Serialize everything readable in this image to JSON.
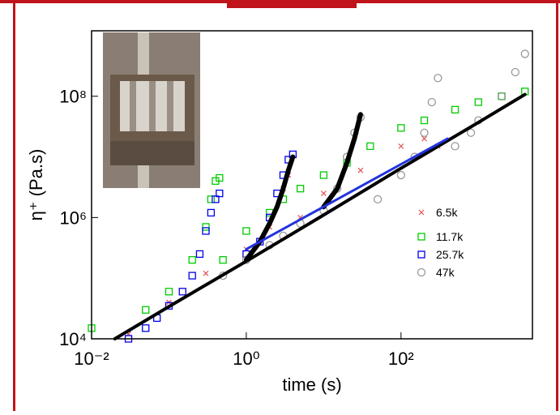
{
  "chart_data": {
    "type": "scatter",
    "xlabel": "time (s)",
    "ylabel": "η⁺ (Pa.s)",
    "log_x": true,
    "log_y": true,
    "xlim": [
      0.01,
      5000
    ],
    "ylim": [
      10000,
      1200000000
    ],
    "xticks": [
      {
        "value": 0.01,
        "label": "10⁻²"
      },
      {
        "value": 1,
        "label": "10⁰"
      },
      {
        "value": 100,
        "label": "10²"
      }
    ],
    "yticks": [
      {
        "value": 10000,
        "label": "10⁴"
      },
      {
        "value": 1000000,
        "label": "10⁶"
      },
      {
        "value": 100000000,
        "label": "10⁸"
      }
    ],
    "legend": "right",
    "series": [
      {
        "name": "6.5k",
        "color": "#e05050",
        "marker": "x",
        "x": [
          0.03,
          0.1,
          0.3,
          1,
          2,
          3,
          3.5,
          5,
          10,
          30,
          100,
          200,
          300
        ],
        "values": [
          12000,
          40000,
          120000,
          300000,
          700000,
          3000000,
          5000000,
          1000000,
          2500000,
          6000000,
          15000000,
          20000000,
          15000000
        ]
      },
      {
        "name": "11.7k",
        "color": "#00cc00",
        "marker": "square",
        "x": [
          0.01,
          0.05,
          0.1,
          0.2,
          0.3,
          0.35,
          0.4,
          0.45,
          0.5,
          1,
          2,
          3,
          5,
          10,
          20,
          40,
          100,
          200,
          500,
          1000,
          2000,
          4000
        ],
        "values": [
          15000,
          30000,
          60000,
          200000,
          700000,
          2000000,
          4000000,
          4500000,
          200000,
          600000,
          1200000,
          2000000,
          3000000,
          5000000,
          8000000,
          15000000,
          30000000,
          40000000,
          60000000,
          80000000,
          100000000,
          120000000
        ]
      },
      {
        "name": "25.7k",
        "color": "#0000ee",
        "marker": "square",
        "x": [
          0.03,
          0.05,
          0.07,
          0.1,
          0.15,
          0.2,
          0.25,
          0.3,
          0.35,
          0.4,
          0.45,
          1,
          1.5,
          2,
          2.5,
          3,
          3.5,
          4
        ],
        "values": [
          10000,
          15000,
          22000,
          35000,
          60000,
          110000,
          250000,
          600000,
          1200000,
          2000000,
          2500000,
          250000,
          400000,
          1000000,
          2500000,
          5000000,
          9000000,
          11000000
        ]
      },
      {
        "name": "47k",
        "color": "#999999",
        "marker": "circle",
        "x": [
          0.5,
          1,
          2,
          3,
          5,
          10,
          15,
          20,
          25,
          30,
          50,
          100,
          150,
          200,
          250,
          300,
          500,
          800,
          1000,
          2000,
          3000,
          4000
        ],
        "values": [
          110000,
          200000,
          350000,
          500000,
          800000,
          1300000,
          3000000,
          10000000,
          25000000,
          45000000,
          2000000,
          5000000,
          10000000,
          25000000,
          80000000,
          200000000,
          15000000,
          25000000,
          40000000,
          100000000,
          250000000,
          500000000
        ]
      }
    ],
    "lines": [
      {
        "color": "#000000",
        "width": 4,
        "x": [
          0.02,
          0.1,
          1,
          10,
          100,
          1000,
          4000
        ],
        "values": [
          10000,
          34000,
          190000,
          1100000,
          6500000,
          37000000,
          107000000
        ]
      },
      {
        "color": "#000000",
        "width": 6,
        "x": [
          1,
          1.5,
          2,
          2.5,
          3,
          3.5,
          4
        ],
        "values": [
          200000,
          400000,
          800000,
          1500000,
          3000000,
          6000000,
          10000000
        ]
      },
      {
        "color": "#000000",
        "width": 6,
        "x": [
          10,
          15,
          20,
          25,
          30
        ],
        "values": [
          1500000,
          3000000,
          8000000,
          20000000,
          50000000
        ]
      },
      {
        "color": "#2233dd",
        "width": 3,
        "x": [
          1,
          400
        ],
        "values": [
          300000,
          20000000
        ]
      }
    ]
  }
}
